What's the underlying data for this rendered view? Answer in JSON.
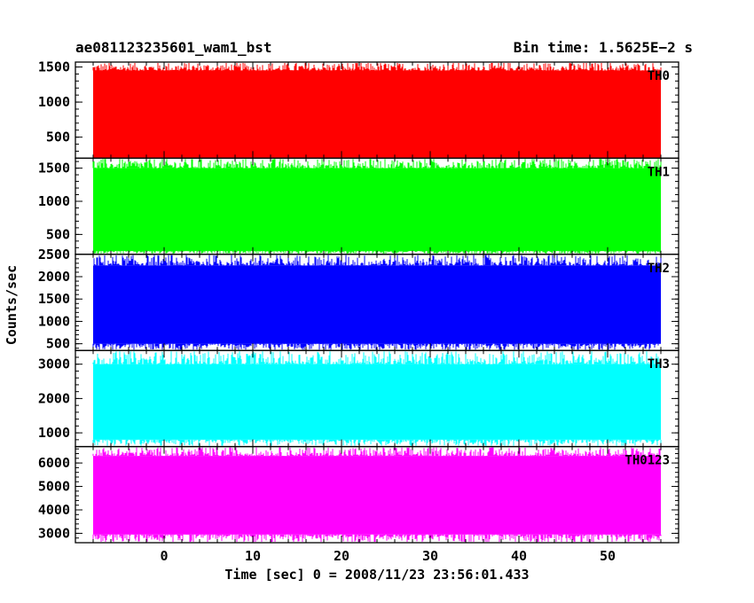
{
  "chart_data": {
    "type": "line",
    "title_left": "ae081123235601_wam1_bst",
    "title_right": "Bin time: 1.5625E−2 s",
    "xlabel": "Time [sec] 0 = 2008/11/23 23:56:01.433",
    "ylabel": "Counts/sec",
    "xlim": [
      -10,
      58
    ],
    "x_data_range": [
      -8,
      56
    ],
    "x_ticks": [
      0,
      10,
      20,
      30,
      40,
      50
    ],
    "x_tick_labels": [
      "0",
      "10",
      "20",
      "30",
      "40",
      "50"
    ],
    "panels": [
      {
        "name": "TH0",
        "color": "#ff0000",
        "ylim": [
          200,
          1570
        ],
        "y_ticks": [
          500,
          1000,
          1500
        ],
        "y_tick_labels": [
          "500",
          "1000",
          "1500"
        ],
        "mean": 850,
        "low_typical": 200,
        "high_typical": 1450,
        "min_peak": 150,
        "max_peak": 1570
      },
      {
        "name": "TH1",
        "color": "#00ff00",
        "ylim": [
          200,
          1650
        ],
        "y_ticks": [
          500,
          1000,
          1500
        ],
        "y_tick_labels": [
          "500",
          "1000",
          "1500"
        ],
        "mean": 900,
        "low_typical": 250,
        "high_typical": 1500,
        "min_peak": 200,
        "max_peak": 1650
      },
      {
        "name": "TH2",
        "color": "#0000ff",
        "ylim": [
          350,
          2500
        ],
        "y_ticks": [
          500,
          1000,
          1500,
          2000,
          2500
        ],
        "y_tick_labels": [
          "500",
          "1000",
          "1500",
          "2000",
          "2500"
        ],
        "mean": 1400,
        "low_typical": 500,
        "high_typical": 2250,
        "min_peak": 350,
        "max_peak": 2500
      },
      {
        "name": "TH3",
        "color": "#00ffff",
        "ylim": [
          600,
          3400
        ],
        "y_ticks": [
          1000,
          2000,
          3000
        ],
        "y_tick_labels": [
          "1000",
          "2000",
          "3000"
        ],
        "mean": 1950,
        "low_typical": 800,
        "high_typical": 3000,
        "min_peak": 600,
        "max_peak": 3400
      },
      {
        "name": "TH0123",
        "color": "#ff00ff",
        "ylim": [
          2600,
          6700
        ],
        "y_ticks": [
          3000,
          4000,
          5000,
          6000
        ],
        "y_tick_labels": [
          "3000",
          "4000",
          "5000",
          "6000"
        ],
        "mean": 4700,
        "low_typical": 2950,
        "high_typical": 6300,
        "min_peak": 2600,
        "max_peak": 6700
      }
    ]
  }
}
